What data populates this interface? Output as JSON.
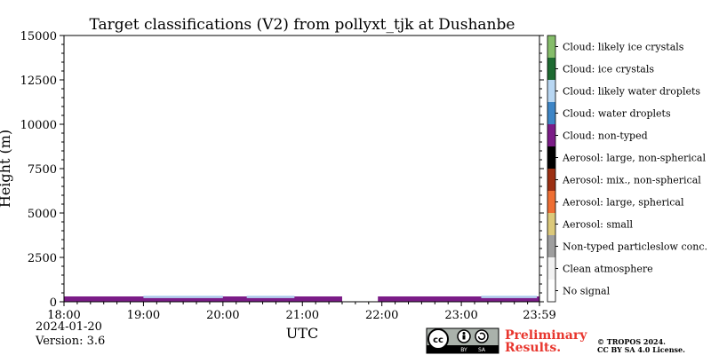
{
  "chart_data": {
    "type": "heatmap",
    "title": "Target classifications (V2) from pollyxt_tjk at Dushanbe",
    "xlabel": "UTC",
    "ylabel": "Height (m)",
    "x_ticks": [
      "18:00",
      "19:00",
      "20:00",
      "21:00",
      "22:00",
      "23:00",
      "23:59"
    ],
    "x_range_hours": [
      18.0,
      23.983
    ],
    "y_ticks": [
      0,
      2500,
      5000,
      7500,
      10000,
      12500,
      15000
    ],
    "ylim": [
      0,
      15000
    ],
    "legend": {
      "placement": "right",
      "classes": [
        {
          "label": "No signal",
          "color": "#ffffff"
        },
        {
          "label": "Clean atmosphere",
          "color": "#f2f2f2"
        },
        {
          "label": "Non-typed particleslow conc.",
          "color": "#9e9e9e"
        },
        {
          "label": "Aerosol: small",
          "color": "#dcc97a"
        },
        {
          "label": "Aerosol: large, spherical",
          "color": "#ee6e33"
        },
        {
          "label": "Aerosol: mix., non-spherical",
          "color": "#9c2f12"
        },
        {
          "label": "Aerosol: large, non-spherical",
          "color": "#000000"
        },
        {
          "label": "Cloud: non-typed",
          "color": "#7b1c87"
        },
        {
          "label": "Cloud: water droplets",
          "color": "#3d85c6"
        },
        {
          "label": "Cloud: likely water droplets",
          "color": "#b8d7f3"
        },
        {
          "label": "Cloud: ice crystals",
          "color": "#1d6a31"
        },
        {
          "label": "Cloud: likely ice crystals",
          "color": "#85bd6a"
        }
      ]
    },
    "segments": [
      {
        "start_h": 18.0,
        "end_h": 21.5,
        "base_m": 0,
        "top_m": 300,
        "class": "Cloud: non-typed"
      },
      {
        "start_h": 21.95,
        "end_h": 23.983,
        "base_m": 0,
        "top_m": 300,
        "class": "Cloud: non-typed"
      }
    ],
    "light_blue_patches": [
      {
        "start_h": 19.0,
        "end_h": 20.0,
        "class": "Cloud: likely water droplets"
      },
      {
        "start_h": 20.3,
        "end_h": 20.9,
        "class": "Cloud: likely water droplets"
      },
      {
        "start_h": 23.25,
        "end_h": 23.95,
        "class": "Cloud: likely water droplets"
      }
    ]
  },
  "footer": {
    "date": "2024-01-20",
    "version": "Version: 3.6",
    "preliminary_line1": "Preliminary",
    "preliminary_line2": "Results.",
    "copyright_line1": "© TROPOS 2024.",
    "copyright_line2": "CC BY SA 4.0 License.",
    "license_badge_labels": [
      "BY",
      "SA"
    ],
    "license_icon": "cc-by-sa-icon"
  }
}
